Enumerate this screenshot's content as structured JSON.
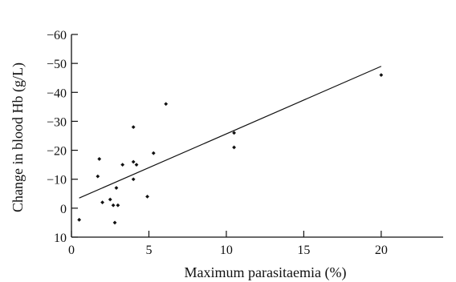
{
  "chart_data": {
    "type": "scatter",
    "title": "",
    "xlabel": "Maximum parasitaemia (%)",
    "ylabel": "Change in blood Hb (g/L)",
    "xlim": [
      0,
      24
    ],
    "ylim": [
      10,
      -60
    ],
    "x_ticks": [
      0,
      5,
      10,
      15,
      20
    ],
    "x_tick_labels": [
      "0",
      "5",
      "10",
      "15",
      "20"
    ],
    "y_ticks": [
      -60,
      -50,
      -40,
      -30,
      -20,
      -10,
      0,
      10
    ],
    "y_tick_labels": [
      "−60",
      "−50",
      "−40",
      "−30",
      "−20",
      "−10",
      "0",
      "10"
    ],
    "y_axis_inverted": true,
    "grid": false,
    "legend": "none",
    "series": [
      {
        "values": [
          {
            "x": 0.5,
            "y": 4
          },
          {
            "x": 1.7,
            "y": -11
          },
          {
            "x": 1.8,
            "y": -17
          },
          {
            "x": 2.0,
            "y": -2
          },
          {
            "x": 2.5,
            "y": -3
          },
          {
            "x": 2.7,
            "y": -1
          },
          {
            "x": 2.8,
            "y": 5
          },
          {
            "x": 2.9,
            "y": -7
          },
          {
            "x": 3.0,
            "y": -1
          },
          {
            "x": 3.3,
            "y": -15
          },
          {
            "x": 4.0,
            "y": -28
          },
          {
            "x": 4.0,
            "y": -16
          },
          {
            "x": 4.0,
            "y": -10
          },
          {
            "x": 4.2,
            "y": -15
          },
          {
            "x": 4.9,
            "y": -4
          },
          {
            "x": 5.3,
            "y": -19
          },
          {
            "x": 6.1,
            "y": -36
          },
          {
            "x": 10.5,
            "y": -21
          },
          {
            "x": 10.5,
            "y": -26
          },
          {
            "x": 20.0,
            "y": -46
          }
        ]
      }
    ],
    "trend_line": {
      "type": "linear",
      "from": {
        "x": 0.5,
        "y": -3.5
      },
      "to": {
        "x": 20.0,
        "y": -49
      }
    }
  }
}
